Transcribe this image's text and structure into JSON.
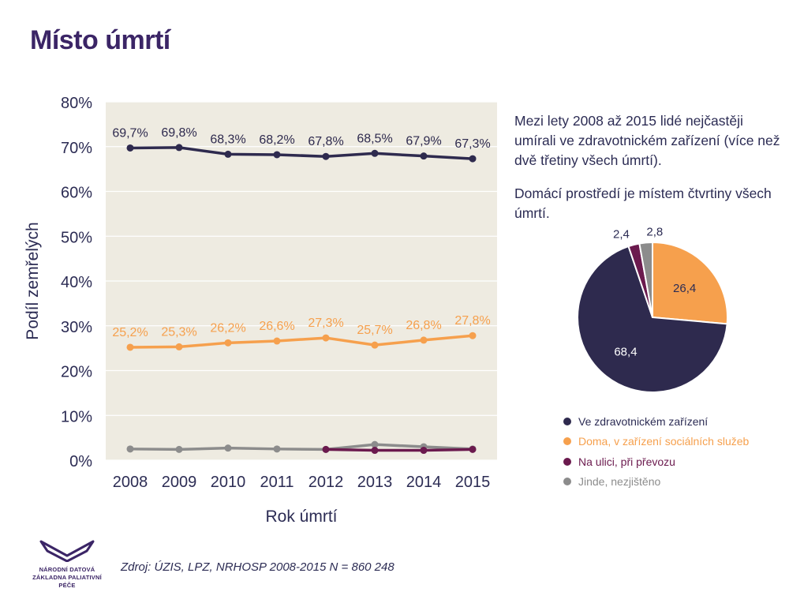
{
  "page_title": "Místo úmrtí",
  "notes": [
    "Mezi lety 2008 až 2015 lidé nejčastěji umírali ve zdravotnickém zařízení (více než dvě třetiny všech úmrtí).",
    "Domácí prostředí je místem čtvrtiny všech úmrtí."
  ],
  "source": "Zdroj: ÚZIS, LPZ, NRHOSP 2008-2015 N = 860 248",
  "logo": {
    "line1": "NÁRODNÍ DATOVÁ",
    "line2": "ZÁKLADNA PALIATIVNÍ PÉČE",
    "icon": "wing-logo-icon"
  },
  "colors": {
    "dark": "#2e2a4e",
    "orange": "#f6a04d",
    "maroon": "#6b1a4e",
    "gray": "#8c8c8c",
    "plot_bg": "#eeebe1",
    "axis_text": "#2c2c54",
    "title": "#3b2566"
  },
  "chart_data": [
    {
      "type": "line",
      "xlabel": "Rok úmrtí",
      "ylabel": "Podíl zemřelých",
      "x": [
        "2008",
        "2009",
        "2010",
        "2011",
        "2012",
        "2013",
        "2014",
        "2015"
      ],
      "ylim": [
        0,
        80
      ],
      "yticks": [
        "0%",
        "10%",
        "20%",
        "30%",
        "40%",
        "50%",
        "60%",
        "70%",
        "80%"
      ],
      "grid": true,
      "series": [
        {
          "name": "Ve zdravotnickém zařízení",
          "color": "#2e2a4e",
          "values": [
            69.7,
            69.8,
            68.3,
            68.2,
            67.8,
            68.5,
            67.9,
            67.3
          ],
          "labels": [
            "69,7%",
            "69,8%",
            "68,3%",
            "68,2%",
            "67,8%",
            "68,5%",
            "67,9%",
            "67,3%"
          ]
        },
        {
          "name": "Doma, v zařízení sociálních služeb",
          "color": "#f6a04d",
          "values": [
            25.2,
            25.3,
            26.2,
            26.6,
            27.3,
            25.7,
            26.8,
            27.8
          ],
          "labels": [
            "25,2%",
            "25,3%",
            "26,2%",
            "26,6%",
            "27,3%",
            "25,7%",
            "26,8%",
            "27,8%"
          ]
        },
        {
          "name": "Na ulici, při převozu",
          "color": "#6b1a4e",
          "values": [
            null,
            null,
            null,
            null,
            2.4,
            2.2,
            2.2,
            2.4
          ],
          "labels": []
        },
        {
          "name": "Jinde, nezjištěno",
          "color": "#8c8c8c",
          "values": [
            2.5,
            2.4,
            2.7,
            2.5,
            2.4,
            3.5,
            3.0,
            2.5
          ],
          "labels": []
        }
      ]
    },
    {
      "type": "pie",
      "slices": [
        {
          "name": "Doma, v zařízení sociálních služeb",
          "value": 26.4,
          "label": "26,4",
          "color": "#f6a04d",
          "label_color": "#2c2c54"
        },
        {
          "name": "Ve zdravotnickém zařízení",
          "value": 68.4,
          "label": "68,4",
          "color": "#2e2a4e",
          "label_color": "#ffffff"
        },
        {
          "name": "Na ulici, při převozu",
          "value": 2.4,
          "label": "2,4",
          "color": "#6b1a4e",
          "label_color": "#2c2c54"
        },
        {
          "name": "Jinde, nezjištěno",
          "value": 2.8,
          "label": "2,8",
          "color": "#8c8c8c",
          "label_color": "#2c2c54"
        }
      ],
      "legend": [
        {
          "label": "Ve zdravotnickém zařízení",
          "color": "#2e2a4e"
        },
        {
          "label": "Doma, v zařízení sociálních služeb",
          "color": "#f6a04d"
        },
        {
          "label": "Na ulici, při převozu",
          "color": "#6b1a4e"
        },
        {
          "label": "Jinde, nezjištěno",
          "color": "#8c8c8c"
        }
      ],
      "legend_position": "bottom"
    }
  ]
}
